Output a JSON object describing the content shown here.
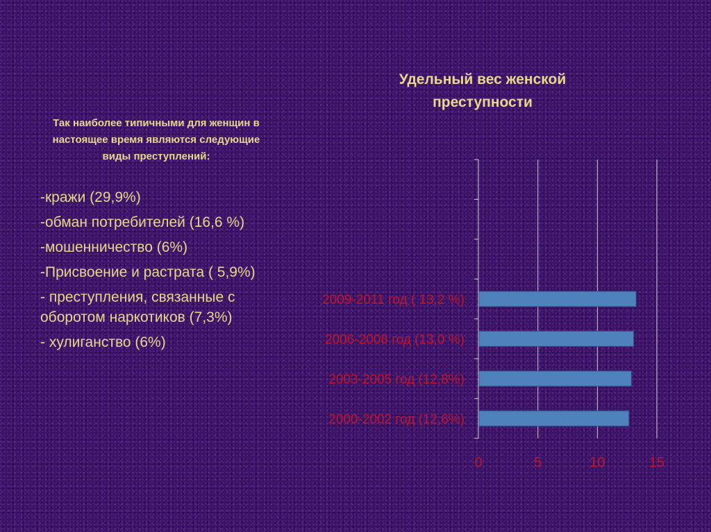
{
  "slide": {
    "intro": "Так наиболее типичными для женщин в настоящее время являются следующие виды преступлений:",
    "items": [
      "-кражи (29,9%)",
      "-обман потребителей (16,6 %)",
      "-мошенничество (6%)",
      "-Присвоение и растрата ( 5,9%)",
      "- преступления, связанные с оборотом наркотиков (7,3%)",
      "- хулиганство (6%)"
    ]
  },
  "chart_data": {
    "type": "bar",
    "orientation": "horizontal",
    "title": "Удельный вес женской преступности",
    "categories": [
      "2009-2011 год ( 13,2 %)",
      "2006-2008  год (13,0 %)",
      "2003-2005 год (12,8%)",
      "2000-2002 год  (12,6%)"
    ],
    "values": [
      13.2,
      13.0,
      12.8,
      12.6
    ],
    "xlim": [
      0,
      15
    ],
    "xticks": [
      "0",
      "5",
      "10",
      "15"
    ],
    "grid": true,
    "colors": {
      "bar": "#4f81bd",
      "bar_edge": "#2d4f80",
      "label": "#c0162a",
      "axis": "#d0d0d0",
      "title": "#e4d98c"
    }
  }
}
